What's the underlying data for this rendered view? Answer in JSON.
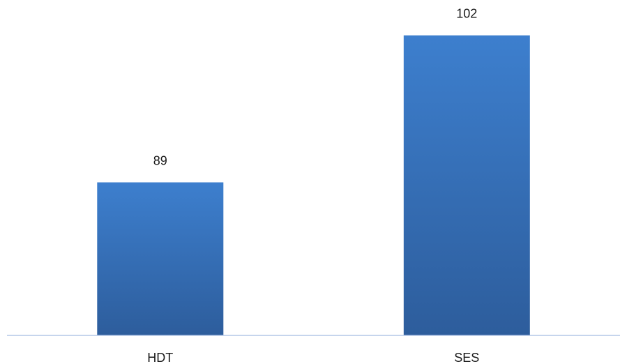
{
  "chart_data": {
    "type": "bar",
    "categories": [
      "HDT",
      "SES"
    ],
    "values": [
      89,
      102
    ],
    "title": "",
    "xlabel": "",
    "ylabel": "",
    "ylim": [
      75.47,
      110
    ],
    "grid": false,
    "legend": "none",
    "data_labels": [
      "89",
      "102"
    ],
    "colors": {
      "bar_top": "#3d7fce",
      "bar_bottom": "#2d5d9c",
      "axis": "#b4c7e7"
    }
  }
}
